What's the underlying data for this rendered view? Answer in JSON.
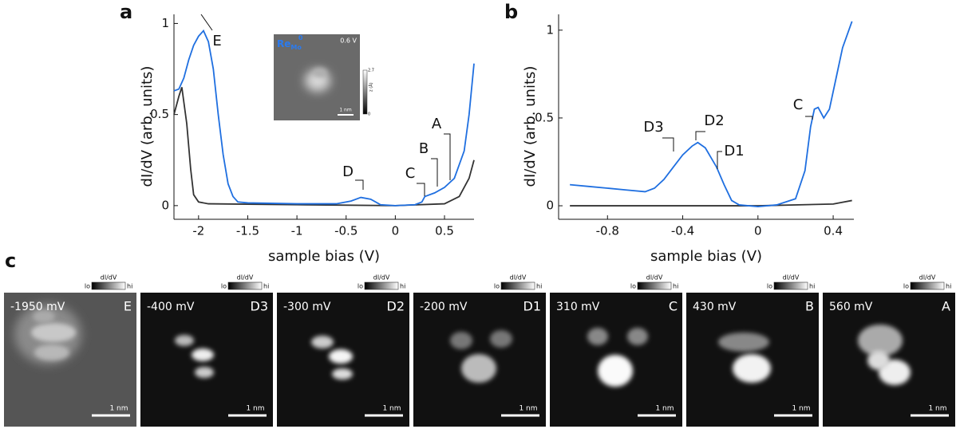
{
  "chart_data": [
    {
      "type": "line",
      "panel": "a",
      "xlabel": "sample bias (V)",
      "ylabel": "dI/dV (arb. units)",
      "xlim": [
        -2.25,
        0.8
      ],
      "ylim": [
        -0.075,
        1.05
      ],
      "xticks": [
        -2,
        -1.5,
        -1,
        -0.5,
        0,
        0.5
      ],
      "yticks": [
        0,
        0.5,
        1
      ],
      "series": [
        {
          "name": null,
          "color": "#1f6fe0",
          "x": [
            -2.25,
            -2.2,
            -2.15,
            -2.1,
            -2.05,
            -2.0,
            -1.95,
            -1.9,
            -1.85,
            -1.8,
            -1.75,
            -1.7,
            -1.65,
            -1.6,
            -1.5,
            -1.0,
            -0.6,
            -0.45,
            -0.35,
            -0.25,
            -0.15,
            0,
            0.2,
            0.27,
            0.3,
            0.4,
            0.5,
            0.6,
            0.7,
            0.75,
            0.8
          ],
          "values": [
            0.63,
            0.64,
            0.7,
            0.8,
            0.88,
            0.93,
            0.96,
            0.9,
            0.75,
            0.5,
            0.28,
            0.12,
            0.05,
            0.02,
            0.015,
            0.01,
            0.01,
            0.025,
            0.045,
            0.035,
            0.005,
            0,
            0.005,
            0.02,
            0.05,
            0.07,
            0.1,
            0.15,
            0.3,
            0.5,
            0.78
          ]
        },
        {
          "name": null,
          "color": "#333333",
          "x": [
            -2.25,
            -2.2,
            -2.17,
            -2.12,
            -2.08,
            -2.05,
            -2.0,
            -1.9,
            -1.0,
            0,
            0.5,
            0.65,
            0.75,
            0.8
          ],
          "values": [
            0.5,
            0.6,
            0.65,
            0.45,
            0.2,
            0.06,
            0.02,
            0.01,
            0.005,
            0,
            0.01,
            0.05,
            0.15,
            0.25
          ]
        }
      ],
      "annotations": [
        "E",
        "D",
        "C",
        "B",
        "A"
      ],
      "inset": {
        "label": "Re",
        "sub": "Mo",
        "sup": "0",
        "bias": "0.6 V",
        "scalebar": "1 nm",
        "cbar_max": 2.7,
        "cbar_min": 0,
        "cbar_title": "z (Å)"
      }
    },
    {
      "type": "line",
      "panel": "b",
      "xlabel": "sample bias (V)",
      "ylabel": "dI/dV (arb. units)",
      "xlim": [
        -1.06,
        0.51
      ],
      "ylim": [
        -0.077,
        1.09
      ],
      "xticks": [
        -0.8,
        -0.4,
        0,
        0.4
      ],
      "yticks": [
        0,
        0.5,
        1
      ],
      "series": [
        {
          "name": null,
          "color": "#1f6fe0",
          "x": [
            -1.0,
            -0.9,
            -0.8,
            -0.7,
            -0.6,
            -0.55,
            -0.5,
            -0.45,
            -0.4,
            -0.35,
            -0.32,
            -0.28,
            -0.22,
            -0.18,
            -0.14,
            -0.1,
            0,
            0.1,
            0.2,
            0.25,
            0.28,
            0.3,
            0.32,
            0.35,
            0.38,
            0.42,
            0.45,
            0.5
          ],
          "values": [
            0.12,
            0.11,
            0.1,
            0.09,
            0.08,
            0.1,
            0.15,
            0.22,
            0.29,
            0.34,
            0.36,
            0.33,
            0.22,
            0.12,
            0.03,
            0.005,
            -0.005,
            0.005,
            0.04,
            0.2,
            0.45,
            0.55,
            0.56,
            0.5,
            0.55,
            0.75,
            0.9,
            1.05
          ]
        },
        {
          "name": null,
          "color": "#333333",
          "x": [
            -1.0,
            -0.5,
            0,
            0.4,
            0.5
          ],
          "values": [
            0,
            0,
            0,
            0.01,
            0.03
          ]
        }
      ],
      "annotations": [
        "D3",
        "D2",
        "D1",
        "C"
      ]
    }
  ],
  "images": {
    "panel": "c",
    "colorbar": {
      "title": "dI/dV",
      "lo": "lo",
      "hi": "hi"
    },
    "scalebar": "1 nm",
    "items": [
      {
        "bias": "-1950 mV",
        "label": "E"
      },
      {
        "bias": "-400 mV",
        "label": "D3"
      },
      {
        "bias": "-300 mV",
        "label": "D2"
      },
      {
        "bias": "-200 mV",
        "label": "D1"
      },
      {
        "bias": "310 mV",
        "label": "C"
      },
      {
        "bias": "430 mV",
        "label": "B"
      },
      {
        "bias": "560 mV",
        "label": "A"
      }
    ]
  }
}
